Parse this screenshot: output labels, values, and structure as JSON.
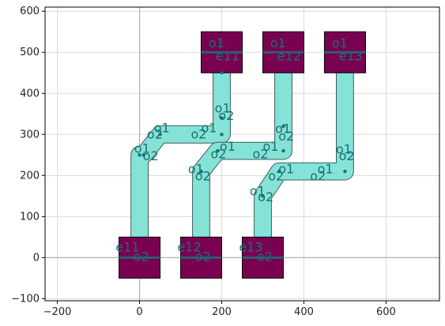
{
  "chart_data": {
    "type": "layout",
    "xlim": [
      -230,
      730
    ],
    "ylim": [
      -105,
      610
    ],
    "xticks": [
      -200,
      0,
      200,
      400,
      600
    ],
    "yticks": [
      -100,
      0,
      100,
      200,
      300,
      400,
      500,
      600
    ],
    "xtick_labels": [
      "−200",
      "0",
      "200",
      "400",
      "600"
    ],
    "ytick_labels": [
      "−100",
      "0",
      "100",
      "200",
      "300",
      "400",
      "500",
      "600"
    ],
    "grid": true,
    "colors": {
      "pad_fill": "#7a0052",
      "route_fill": "#84e3d6",
      "route_edge": "#3d5c57",
      "port": "#1a6f73",
      "grid": "#d9d9d9",
      "axis_zero": "#b0b0b0"
    },
    "pads": [
      {
        "name": "bottom-left-pad",
        "x": [
          -50,
          50
        ],
        "y": [
          -50,
          50
        ]
      },
      {
        "name": "bottom-mid-pad",
        "x": [
          100,
          200
        ],
        "y": [
          -50,
          50
        ]
      },
      {
        "name": "bottom-right-pad",
        "x": [
          250,
          350
        ],
        "y": [
          -50,
          50
        ]
      },
      {
        "name": "top-left-pad",
        "x": [
          150,
          250
        ],
        "y": [
          450,
          550
        ]
      },
      {
        "name": "top-mid-pad",
        "x": [
          300,
          400
        ],
        "y": [
          450,
          550
        ]
      },
      {
        "name": "top-right-pad",
        "x": [
          450,
          550
        ],
        "y": [
          450,
          550
        ]
      }
    ],
    "routes": [
      {
        "name": "route-1",
        "points": [
          [
            0,
            0
          ],
          [
            0,
            250
          ],
          [
            10,
            250
          ],
          [
            50,
            300
          ],
          [
            200,
            300
          ],
          [
            200,
            340
          ],
          [
            200,
            450
          ],
          [
            200,
            500
          ]
        ]
      },
      {
        "name": "route-2",
        "points": [
          [
            150,
            0
          ],
          [
            150,
            210
          ],
          [
            190,
            260
          ],
          [
            350,
            260
          ],
          [
            350,
            320
          ],
          [
            350,
            500
          ]
        ]
      },
      {
        "name": "route-3",
        "points": [
          [
            300,
            0
          ],
          [
            300,
            150
          ],
          [
            340,
            210
          ],
          [
            500,
            210
          ],
          [
            500,
            500
          ]
        ]
      }
    ],
    "labels": [
      {
        "text": "o1",
        "x": 35,
        "y": 305
      },
      {
        "text": "o2",
        "x": 18,
        "y": 290
      },
      {
        "text": "o1",
        "x": 150,
        "y": 305
      },
      {
        "text": "o2",
        "x": 125,
        "y": 290
      },
      {
        "text": "o1",
        "x": 183,
        "y": 353
      },
      {
        "text": "o2",
        "x": 192,
        "y": 335
      },
      {
        "text": "o1",
        "x": -13,
        "y": 255
      },
      {
        "text": "o2",
        "x": 8,
        "y": 237
      },
      {
        "text": "o1",
        "x": 195,
        "y": 260
      },
      {
        "text": "o2",
        "x": 173,
        "y": 242
      },
      {
        "text": "o1",
        "x": 300,
        "y": 260
      },
      {
        "text": "o2",
        "x": 275,
        "y": 242
      },
      {
        "text": "o1",
        "x": 330,
        "y": 303
      },
      {
        "text": "o2",
        "x": 338,
        "y": 285
      },
      {
        "text": "o1",
        "x": 118,
        "y": 205
      },
      {
        "text": "o2",
        "x": 135,
        "y": 188
      },
      {
        "text": "o1",
        "x": 338,
        "y": 205
      },
      {
        "text": "o2",
        "x": 313,
        "y": 188
      },
      {
        "text": "o1",
        "x": 433,
        "y": 205
      },
      {
        "text": "o2",
        "x": 415,
        "y": 188
      },
      {
        "text": "o1",
        "x": 478,
        "y": 253
      },
      {
        "text": "o2",
        "x": 485,
        "y": 237
      },
      {
        "text": "o1",
        "x": 268,
        "y": 152
      },
      {
        "text": "o2",
        "x": 288,
        "y": 137
      },
      {
        "text": "e11",
        "x": -58,
        "y": 15
      },
      {
        "text": "o2",
        "x": -15,
        "y": -8
      },
      {
        "text": "e12",
        "x": 92,
        "y": 15
      },
      {
        "text": "o2",
        "x": 135,
        "y": -8
      },
      {
        "text": "e13",
        "x": 242,
        "y": 15
      },
      {
        "text": "o2",
        "x": 285,
        "y": -8
      },
      {
        "text": "o1",
        "x": 168,
        "y": 512
      },
      {
        "text": "e11",
        "x": 185,
        "y": 480
      },
      {
        "text": "o1",
        "x": 318,
        "y": 512
      },
      {
        "text": "e12",
        "x": 335,
        "y": 480
      },
      {
        "text": "o1",
        "x": 468,
        "y": 512
      },
      {
        "text": "e13",
        "x": 485,
        "y": 480
      }
    ]
  }
}
